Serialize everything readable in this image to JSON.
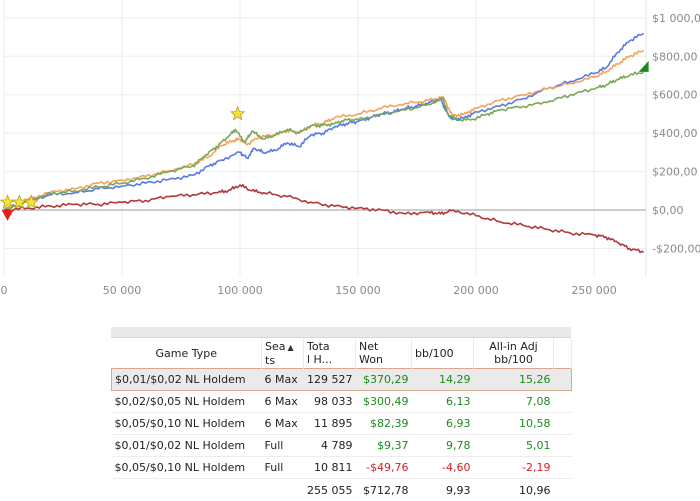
{
  "chart_data": {
    "type": "line",
    "x_ticks": [
      0,
      50000,
      100000,
      150000,
      200000,
      250000
    ],
    "x_tick_labels": [
      "0",
      "50 000",
      "100 000",
      "150 000",
      "200 000",
      "250 000"
    ],
    "y_ticks": [
      -200,
      0,
      200,
      400,
      600,
      800,
      1000
    ],
    "y_tick_labels": [
      "-$200,00",
      "$0,00",
      "$200,00",
      "$400,00",
      "$600,00",
      "$800,00",
      "$1 000,00"
    ],
    "xlim": [
      0,
      272000
    ],
    "ylim": [
      -260,
      1020
    ],
    "grid": true,
    "series": [
      {
        "color": "#5b7be0",
        "points": [
          [
            0,
            0
          ],
          [
            10000,
            50
          ],
          [
            20000,
            80
          ],
          [
            30000,
            90
          ],
          [
            40000,
            110
          ],
          [
            50000,
            125
          ],
          [
            60000,
            140
          ],
          [
            70000,
            160
          ],
          [
            80000,
            180
          ],
          [
            87000,
            230
          ],
          [
            92000,
            260
          ],
          [
            100000,
            300
          ],
          [
            103000,
            270
          ],
          [
            106000,
            320
          ],
          [
            110000,
            300
          ],
          [
            115000,
            310
          ],
          [
            120000,
            350
          ],
          [
            125000,
            330
          ],
          [
            130000,
            390
          ],
          [
            135000,
            400
          ],
          [
            140000,
            430
          ],
          [
            145000,
            450
          ],
          [
            150000,
            460
          ],
          [
            155000,
            480
          ],
          [
            160000,
            500
          ],
          [
            165000,
            510
          ],
          [
            170000,
            530
          ],
          [
            175000,
            540
          ],
          [
            180000,
            560
          ],
          [
            185000,
            580
          ],
          [
            187000,
            520
          ],
          [
            190000,
            470
          ],
          [
            195000,
            480
          ],
          [
            200000,
            510
          ],
          [
            210000,
            540
          ],
          [
            220000,
            580
          ],
          [
            230000,
            630
          ],
          [
            240000,
            670
          ],
          [
            250000,
            710
          ],
          [
            255000,
            740
          ],
          [
            260000,
            820
          ],
          [
            265000,
            880
          ],
          [
            271000,
            920
          ]
        ]
      },
      {
        "color": "#f4a35c",
        "points": [
          [
            0,
            0
          ],
          [
            10000,
            55
          ],
          [
            20000,
            95
          ],
          [
            30000,
            110
          ],
          [
            40000,
            140
          ],
          [
            50000,
            155
          ],
          [
            60000,
            175
          ],
          [
            70000,
            205
          ],
          [
            80000,
            235
          ],
          [
            87000,
            280
          ],
          [
            92000,
            335
          ],
          [
            97000,
            360
          ],
          [
            100000,
            370
          ],
          [
            103000,
            340
          ],
          [
            108000,
            380
          ],
          [
            115000,
            390
          ],
          [
            120000,
            415
          ],
          [
            125000,
            400
          ],
          [
            130000,
            440
          ],
          [
            135000,
            450
          ],
          [
            140000,
            480
          ],
          [
            150000,
            500
          ],
          [
            160000,
            530
          ],
          [
            170000,
            555
          ],
          [
            180000,
            570
          ],
          [
            186000,
            590
          ],
          [
            190000,
            490
          ],
          [
            195000,
            500
          ],
          [
            200000,
            530
          ],
          [
            210000,
            570
          ],
          [
            220000,
            600
          ],
          [
            230000,
            630
          ],
          [
            240000,
            660
          ],
          [
            250000,
            690
          ],
          [
            255000,
            720
          ],
          [
            260000,
            760
          ],
          [
            265000,
            800
          ],
          [
            271000,
            830
          ]
        ]
      },
      {
        "color": "#7aa85a",
        "points": [
          [
            0,
            0
          ],
          [
            5000,
            20
          ],
          [
            10000,
            45
          ],
          [
            20000,
            85
          ],
          [
            30000,
            100
          ],
          [
            40000,
            120
          ],
          [
            50000,
            140
          ],
          [
            60000,
            165
          ],
          [
            70000,
            200
          ],
          [
            80000,
            230
          ],
          [
            85000,
            280
          ],
          [
            90000,
            330
          ],
          [
            95000,
            380
          ],
          [
            98000,
            420
          ],
          [
            102000,
            350
          ],
          [
            105000,
            410
          ],
          [
            110000,
            370
          ],
          [
            115000,
            390
          ],
          [
            120000,
            420
          ],
          [
            125000,
            400
          ],
          [
            130000,
            440
          ],
          [
            135000,
            440
          ],
          [
            140000,
            450
          ],
          [
            145000,
            470
          ],
          [
            150000,
            470
          ],
          [
            160000,
            500
          ],
          [
            170000,
            520
          ],
          [
            180000,
            550
          ],
          [
            186000,
            580
          ],
          [
            188000,
            500
          ],
          [
            192000,
            470
          ],
          [
            198000,
            470
          ],
          [
            205000,
            500
          ],
          [
            210000,
            520
          ],
          [
            220000,
            540
          ],
          [
            230000,
            560
          ],
          [
            240000,
            600
          ],
          [
            250000,
            630
          ],
          [
            255000,
            650
          ],
          [
            260000,
            680
          ],
          [
            265000,
            700
          ],
          [
            271000,
            720
          ]
        ]
      },
      {
        "color": "#b03a3a",
        "points": [
          [
            0,
            0
          ],
          [
            10000,
            10
          ],
          [
            20000,
            20
          ],
          [
            30000,
            30
          ],
          [
            40000,
            30
          ],
          [
            50000,
            40
          ],
          [
            60000,
            50
          ],
          [
            70000,
            70
          ],
          [
            80000,
            80
          ],
          [
            90000,
            90
          ],
          [
            95000,
            100
          ],
          [
            100000,
            130
          ],
          [
            105000,
            100
          ],
          [
            110000,
            90
          ],
          [
            120000,
            70
          ],
          [
            130000,
            40
          ],
          [
            140000,
            20
          ],
          [
            150000,
            10
          ],
          [
            160000,
            0
          ],
          [
            170000,
            -20
          ],
          [
            180000,
            -10
          ],
          [
            185000,
            -20
          ],
          [
            190000,
            0
          ],
          [
            200000,
            -30
          ],
          [
            210000,
            -60
          ],
          [
            220000,
            -80
          ],
          [
            230000,
            -100
          ],
          [
            240000,
            -120
          ],
          [
            250000,
            -130
          ],
          [
            255000,
            -140
          ],
          [
            260000,
            -170
          ],
          [
            265000,
            -200
          ],
          [
            271000,
            -220
          ]
        ]
      }
    ],
    "markers": [
      {
        "kind": "star",
        "x": 1500,
        "y": 40,
        "color": "#f3e33a"
      },
      {
        "kind": "star",
        "x": 6500,
        "y": 40,
        "color": "#f3e33a"
      },
      {
        "kind": "star",
        "x": 11500,
        "y": 40,
        "color": "#f3e33a"
      },
      {
        "kind": "star",
        "x": 99000,
        "y": 500,
        "color": "#f3e33a"
      },
      {
        "kind": "triangle-down",
        "x": 1500,
        "y": -25,
        "color": "#e02020"
      },
      {
        "kind": "triangle-up",
        "x": 271000,
        "y": 745,
        "color": "#1e8a1e"
      }
    ]
  },
  "table": {
    "headers": {
      "game_type": "Game Type",
      "seats_1": "Sea",
      "seats_2": "ts",
      "hands_1": "Tota",
      "hands_2": "l H...",
      "net_won_1": "Net",
      "net_won_2": "Won",
      "bb100": "bb/100",
      "allin_1": "All-in Adj",
      "allin_2": "bb/100"
    },
    "rows": [
      {
        "game": "$0,01/$0,02 NL Holdem",
        "seats": "6 Max",
        "hands": "129 527",
        "net": "$370,29",
        "bb": "14,29",
        "allin": "15,26"
      },
      {
        "game": "$0,02/$0,05 NL Holdem",
        "seats": "6 Max",
        "hands": "98 033",
        "net": "$300,49",
        "bb": "6,13",
        "allin": "7,08"
      },
      {
        "game": "$0,05/$0,10 NL Holdem",
        "seats": "6 Max",
        "hands": "11 895",
        "net": "$82,39",
        "bb": "6,93",
        "allin": "10,58"
      },
      {
        "game": "$0,01/$0,02 NL Holdem",
        "seats": "Full",
        "hands": "4 789",
        "net": "$9,37",
        "bb": "9,78",
        "allin": "5,01"
      },
      {
        "game": "$0,05/$0,10 NL Holdem",
        "seats": "Full",
        "hands": "10 811",
        "net": "-$49,76",
        "bb": "-4,60",
        "allin": "-2,19"
      }
    ],
    "totals": {
      "hands": "255 055",
      "net": "$712,78",
      "bb": "9,93",
      "allin": "10,96"
    },
    "colors": {
      "positive": "#1c8a1c",
      "negative": "#dd1e1e",
      "selected_row_border": "#d9a690"
    }
  }
}
